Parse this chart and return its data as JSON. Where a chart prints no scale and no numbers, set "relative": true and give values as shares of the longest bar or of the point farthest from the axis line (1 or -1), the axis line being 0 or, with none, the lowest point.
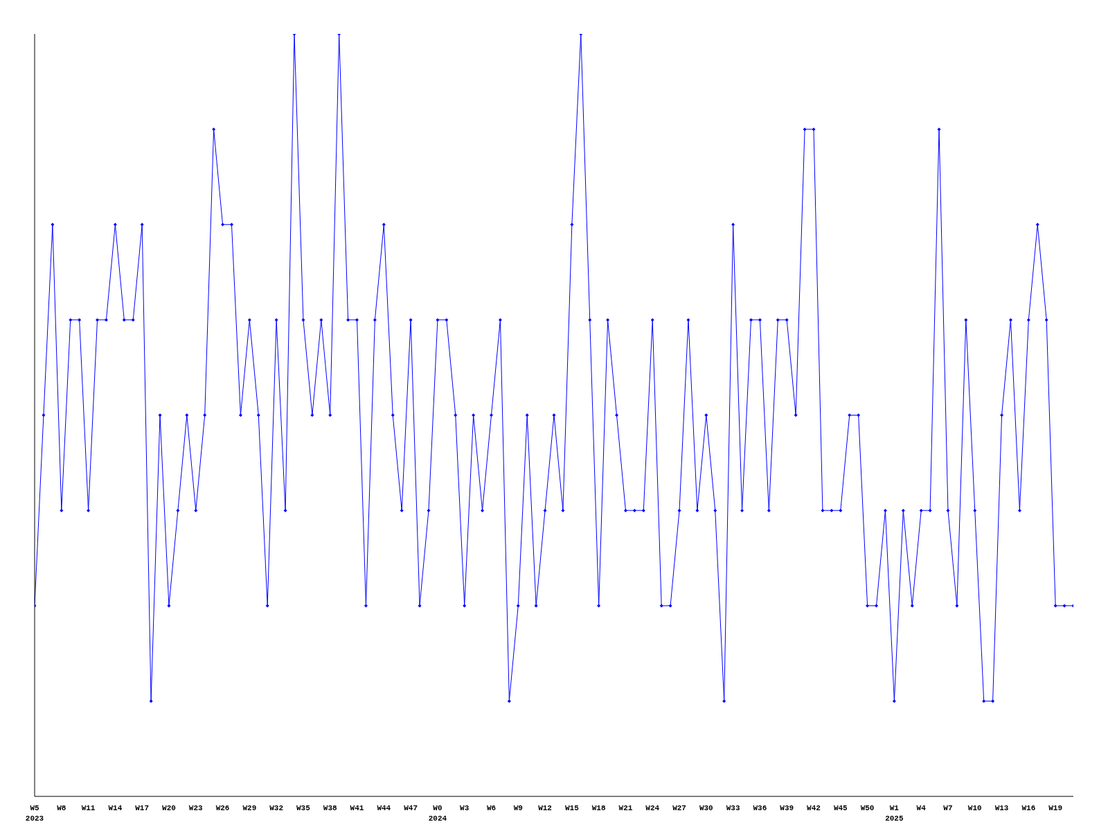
{
  "chart_data": {
    "type": "line",
    "relative": true,
    "marker": "diamond",
    "line_style": "solid",
    "categories": [
      "W5\n2023",
      null,
      null,
      "W8",
      null,
      null,
      "W11",
      null,
      null,
      "W14",
      null,
      null,
      "W17",
      null,
      null,
      "W20",
      null,
      null,
      "W23",
      null,
      null,
      "W26",
      null,
      null,
      "W29",
      null,
      null,
      "W32",
      null,
      null,
      "W35",
      null,
      null,
      "W38",
      null,
      null,
      "W41",
      null,
      null,
      "W44",
      null,
      null,
      "W47",
      null,
      null,
      "W0\n2024",
      null,
      null,
      "W3",
      null,
      null,
      "W6",
      null,
      null,
      "W9",
      null,
      null,
      "W12",
      null,
      null,
      "W15",
      null,
      null,
      "W18",
      null,
      null,
      "W21",
      null,
      null,
      "W24",
      null,
      null,
      "W27",
      null,
      null,
      "W30",
      null,
      null,
      "W33",
      null,
      null,
      "W36",
      null,
      null,
      "W39",
      null,
      null,
      "W42",
      null,
      null,
      "W45",
      null,
      null,
      "W50",
      null,
      null,
      "W1\n2025",
      null,
      null,
      "W4",
      null,
      null,
      "W7",
      null,
      null,
      "W10",
      null,
      null,
      "W13",
      null,
      null,
      "W16",
      null,
      null,
      "W19",
      null,
      null
    ],
    "series": [
      {
        "color": "#0000ff",
        "values": [
          0.25,
          0.5,
          0.75,
          0.375,
          0.625,
          0.625,
          0.375,
          0.625,
          0.625,
          0.75,
          0.625,
          0.625,
          0.75,
          0.125,
          0.5,
          0.25,
          0.375,
          0.5,
          0.375,
          0.5,
          0.875,
          0.75,
          0.75,
          0.5,
          0.625,
          0.5,
          0.25,
          0.625,
          0.375,
          1,
          0.625,
          0.5,
          0.625,
          0.5,
          1,
          0.625,
          0.625,
          0.25,
          0.625,
          0.75,
          0.5,
          0.375,
          0.625,
          0.25,
          0.375,
          0.625,
          0.625,
          0.5,
          0.25,
          0.5,
          0.375,
          0.5,
          0.625,
          0.125,
          0.25,
          0.5,
          0.25,
          0.375,
          0.5,
          0.375,
          0.75,
          1,
          0.625,
          0.25,
          0.625,
          0.5,
          0.375,
          0.375,
          0.375,
          0.625,
          0.25,
          0.25,
          0.375,
          0.625,
          0.375,
          0.5,
          0.375,
          0.125,
          0.75,
          0.375,
          0.625,
          0.625,
          0.375,
          0.625,
          0.625,
          0.5,
          0.875,
          0.875,
          0.375,
          0.375,
          0.375,
          0.5,
          0.5,
          0.25,
          0.25,
          0.375,
          0.125,
          0.375,
          0.25,
          0.375,
          0.375,
          0.875,
          0.375,
          0.25,
          0.625,
          0.375,
          0.125,
          0.125,
          0.5,
          0.625,
          0.375,
          0.625,
          0.75,
          0.625,
          0.25,
          0.25,
          0.25
        ]
      }
    ]
  }
}
